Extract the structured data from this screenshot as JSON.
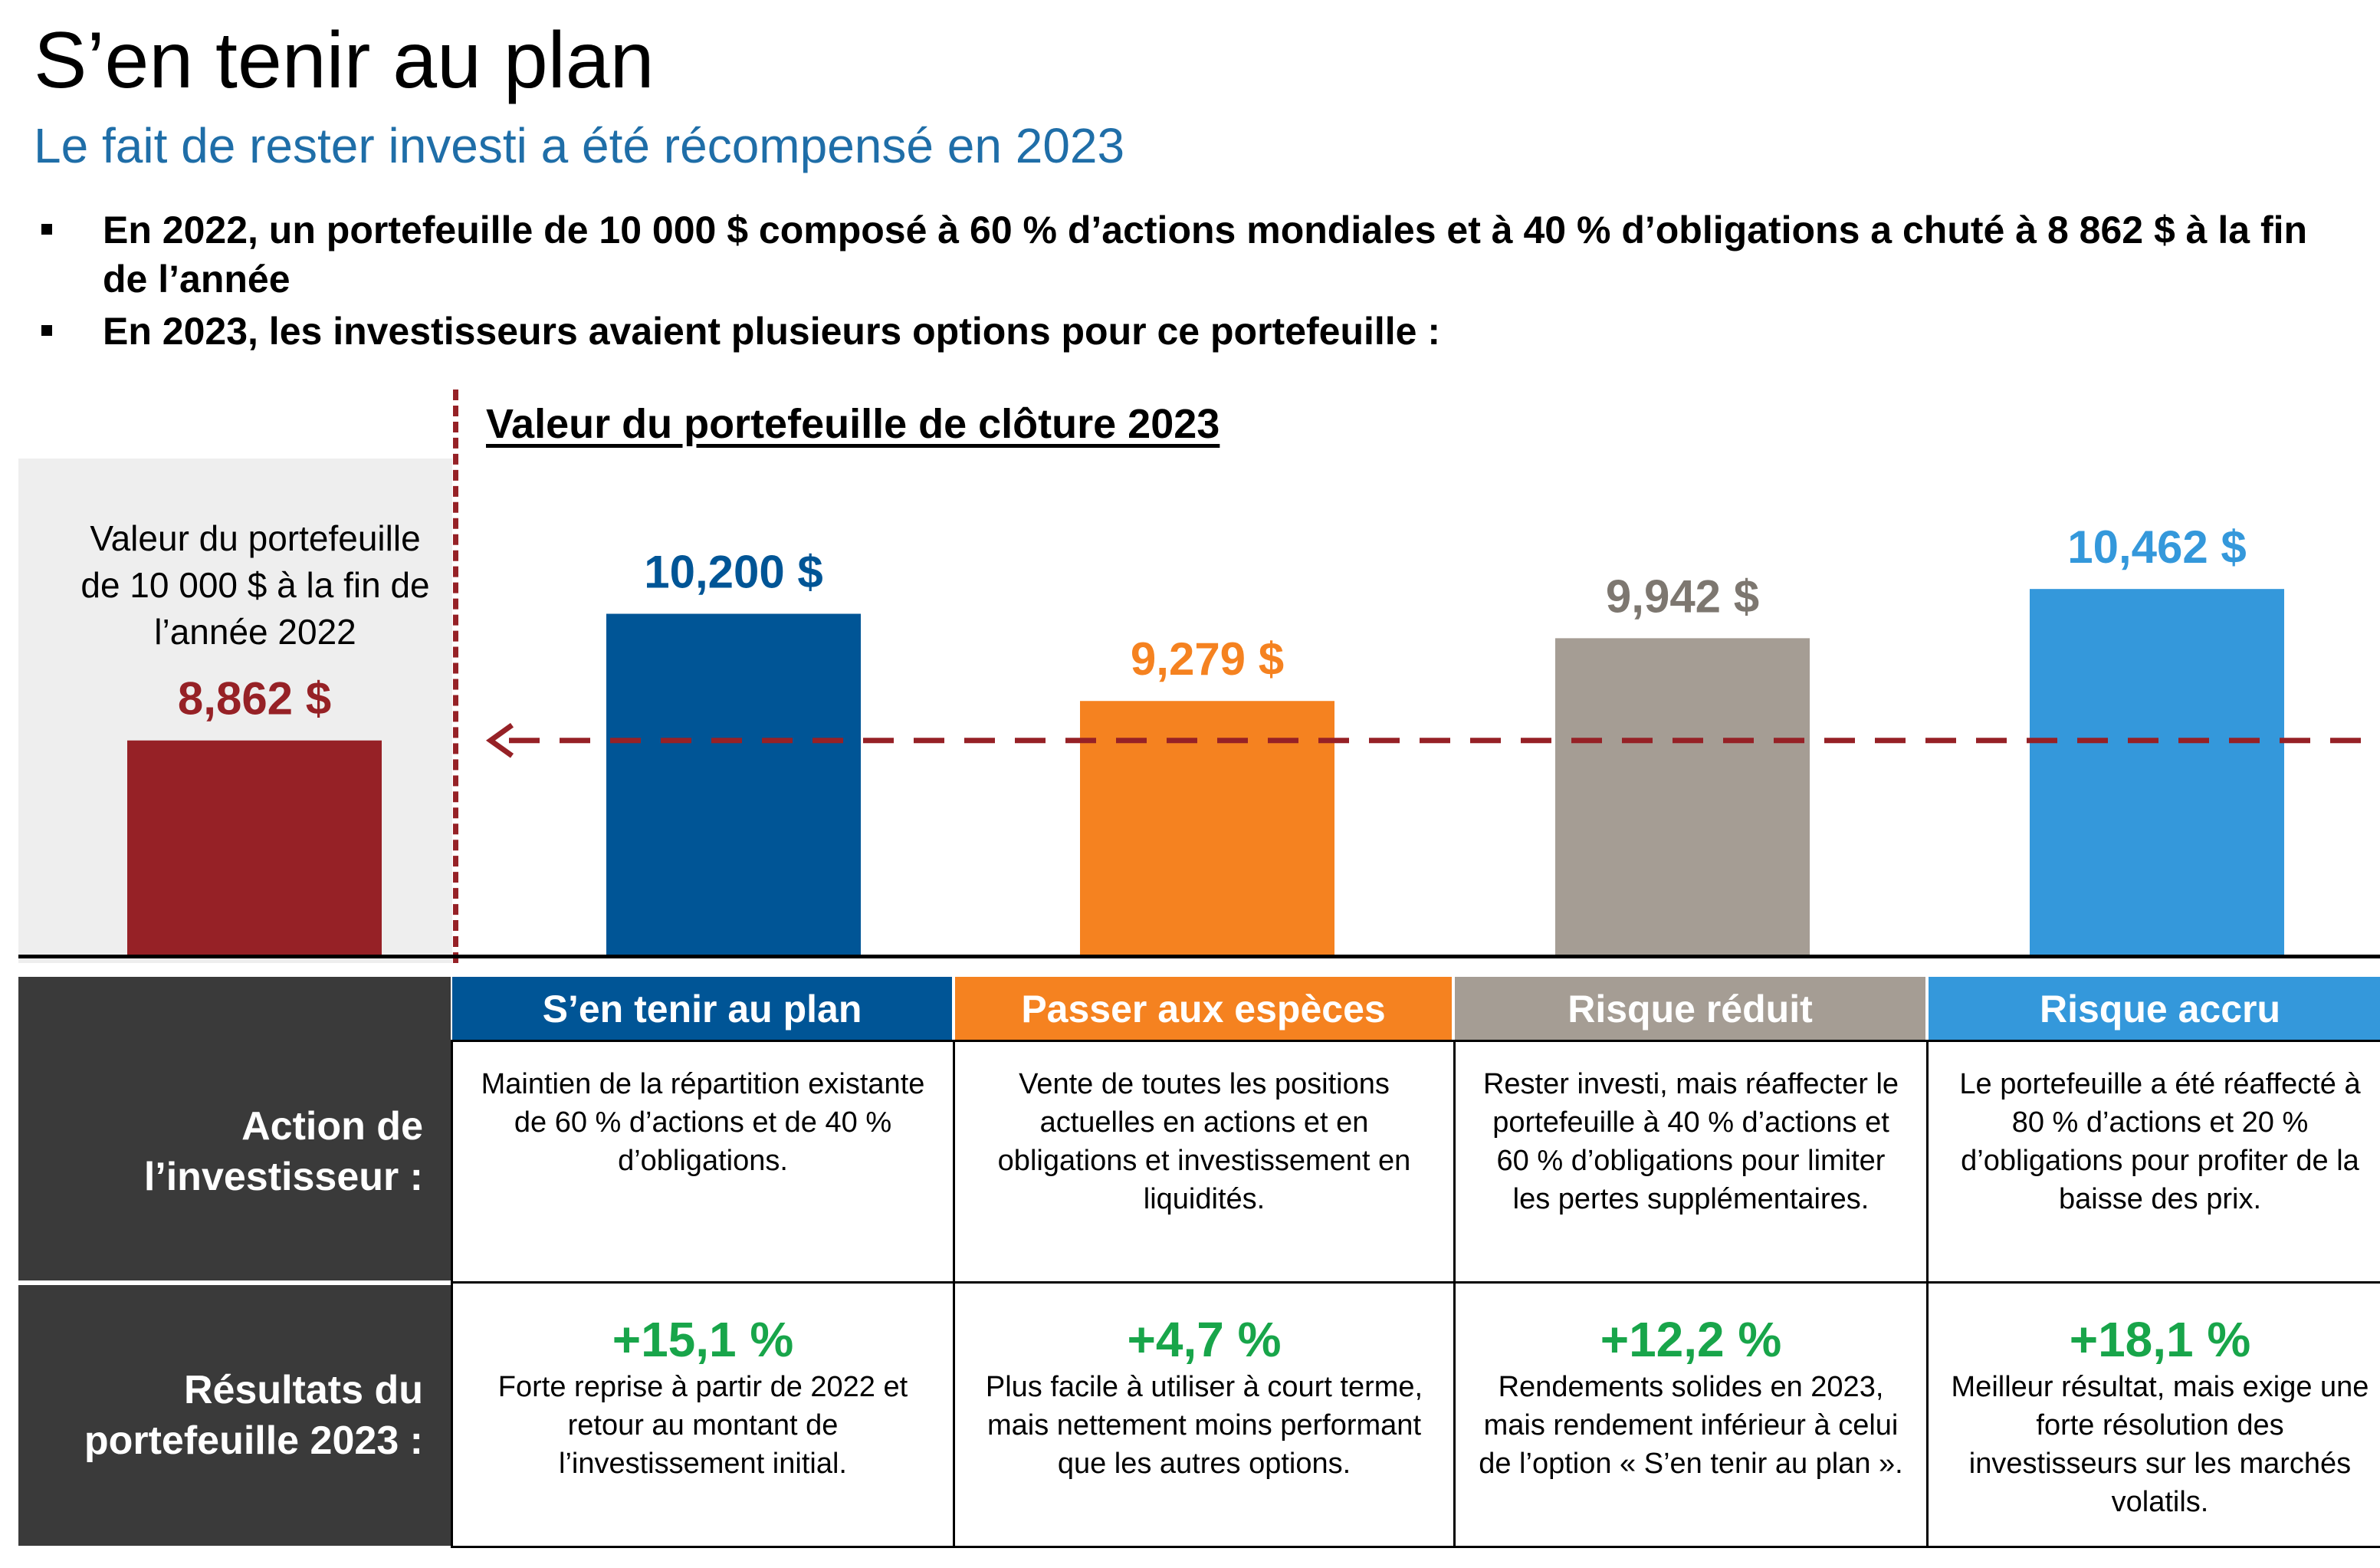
{
  "header": {
    "title": "S’en tenir au plan",
    "subtitle": "Le fait de rester investi a été récompensé en 2023",
    "bullets": [
      "En 2022, un portefeuille de 10 000 $ composé à 60 % d’actions mondiales et à 40 % d’obligations a chuté à 8 862 $ à la fin de l’année",
      "En 2023, les investisseurs avaient plusieurs options pour ce portefeuille :"
    ]
  },
  "left_panel": {
    "caption": "Valeur du portefeuille de 10 000 $ à la fin de l’année 2022"
  },
  "chart_data": {
    "type": "bar",
    "title": "Valeur du portefeuille de clôture 2023",
    "categories": [
      "Fin 2022",
      "S’en tenir au plan",
      "Passer aux espèces",
      "Risque réduit",
      "Risque accru"
    ],
    "values": [
      8862,
      10200,
      9279,
      9942,
      10462
    ],
    "labels": [
      "8,862 $",
      "10,200 $",
      "9,279 $",
      "9,942 $",
      "10,462 $"
    ],
    "colors": [
      "#962126",
      "#005596",
      "#f58220",
      "#a59d94",
      "#3498db"
    ],
    "reference_line": 8862,
    "reference_color": "#962126",
    "ylim": [
      6600,
      11500
    ],
    "xlabel": "",
    "ylabel": ""
  },
  "table": {
    "row_headers": [
      "Action de l’investisseur :",
      "Résultats du portefeuille 2023 :"
    ],
    "columns": [
      {
        "header": "S’en tenir au plan",
        "color": "#005596",
        "action": "Maintien de la répartition existante de 60 % d’actions et de 40 % d’obligations.",
        "result_pct": "+15,1 %",
        "result_text": "Forte reprise à partir de 2022 et retour au montant de l’investissement initial."
      },
      {
        "header": "Passer aux espèces",
        "color": "#f58220",
        "action": "Vente de toutes les positions actuelles en actions et en obligations et investissement en liquidités.",
        "result_pct": "+4,7 %",
        "result_text": "Plus facile à utiliser à court terme, mais nettement moins performant que les autres options."
      },
      {
        "header": "Risque réduit",
        "color": "#a59d94",
        "action": "Rester investi, mais réaffecter le portefeuille à 40 % d’actions et 60 % d’obligations pour limiter les pertes supplémentaires.",
        "result_pct": "+12,2 %",
        "result_text": "Rendements solides en 2023, mais rendement inférieur à celui de l’option « S’en tenir au plan »."
      },
      {
        "header": "Risque accru",
        "color": "#3498db",
        "action": "Le portefeuille a été réaffecté à 80 % d’actions et 20 % d’obligations pour profiter de la baisse des prix.",
        "result_pct": "+18,1 %",
        "result_text": "Meilleur résultat, mais exige une forte résolution des investisseurs sur les marchés volatils."
      }
    ]
  }
}
